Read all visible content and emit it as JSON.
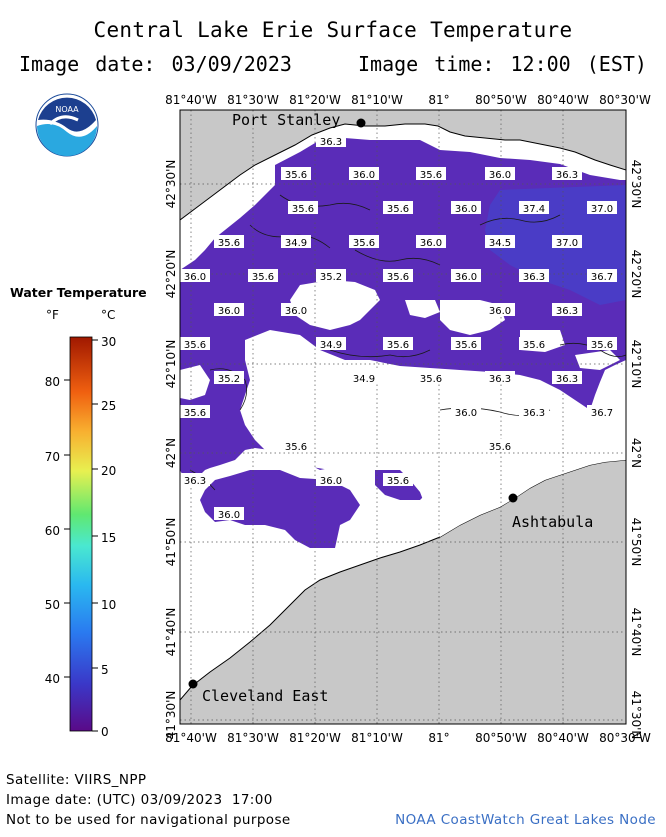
{
  "header": {
    "title": "Central Lake Erie Surface Temperature",
    "image_date_label": "Image date: 03/09/2023",
    "image_time_label": "Image time: 12:00 (EST)"
  },
  "logo": {
    "text": "NOAA",
    "icon": "noaa-logo"
  },
  "map": {
    "lon_ticks": [
      "81°40'W",
      "81°30'W",
      "81°20'W",
      "81°10'W",
      "81°",
      "80°50'W",
      "80°40'W",
      "80°30'W"
    ],
    "lat_ticks": [
      "42°30'N",
      "42°20'N",
      "42°10'N",
      "42°N",
      "41°50'N",
      "41°40'N",
      "41°30'N"
    ],
    "cities": [
      {
        "name": "Port Stanley"
      },
      {
        "name": "Ashtabula"
      },
      {
        "name": "Cleveland East"
      }
    ],
    "temperature_labels": [
      "36.3",
      "35.6",
      "36.0",
      "35.6",
      "36.0",
      "36.3",
      "35.6",
      "35.6",
      "36.0",
      "37.4",
      "37.0",
      "35.6",
      "34.9",
      "35.6",
      "36.0",
      "34.5",
      "37.0",
      "36.0",
      "35.6",
      "35.2",
      "35.6",
      "36.0",
      "36.3",
      "36.7",
      "36.0",
      "36.0",
      "36.0",
      "36.3",
      "35.6",
      "34.9",
      "35.6",
      "35.6",
      "35.6",
      "35.6",
      "35.2",
      "34.9",
      "35.6",
      "36.3",
      "36.3",
      "35.6",
      "36.0",
      "36.3",
      "36.7",
      "35.6",
      "35.6",
      "36.3",
      "36.0",
      "35.6",
      "36.0"
    ],
    "colors": {
      "land": "#c8c8c8",
      "water_no_data": "#ffffff",
      "water_temp_main": "#5a2cb8",
      "water_temp_warm": "#4a40c8"
    }
  },
  "legend": {
    "title": "Water Temperature",
    "unit_f": "°F",
    "unit_c": "°C",
    "f_ticks": [
      "80",
      "70",
      "60",
      "50",
      "40"
    ],
    "c_ticks": [
      "30",
      "25",
      "20",
      "15",
      "10",
      "5",
      "0"
    ]
  },
  "footer": {
    "satellite": "Satellite: VIIRS_NPP",
    "utc_date": "Image date: (UTC) 03/09/2023  17:00",
    "disclaimer": "Not to be used for navigational purpose",
    "credit": "NOAA CoastWatch Great Lakes Node"
  }
}
